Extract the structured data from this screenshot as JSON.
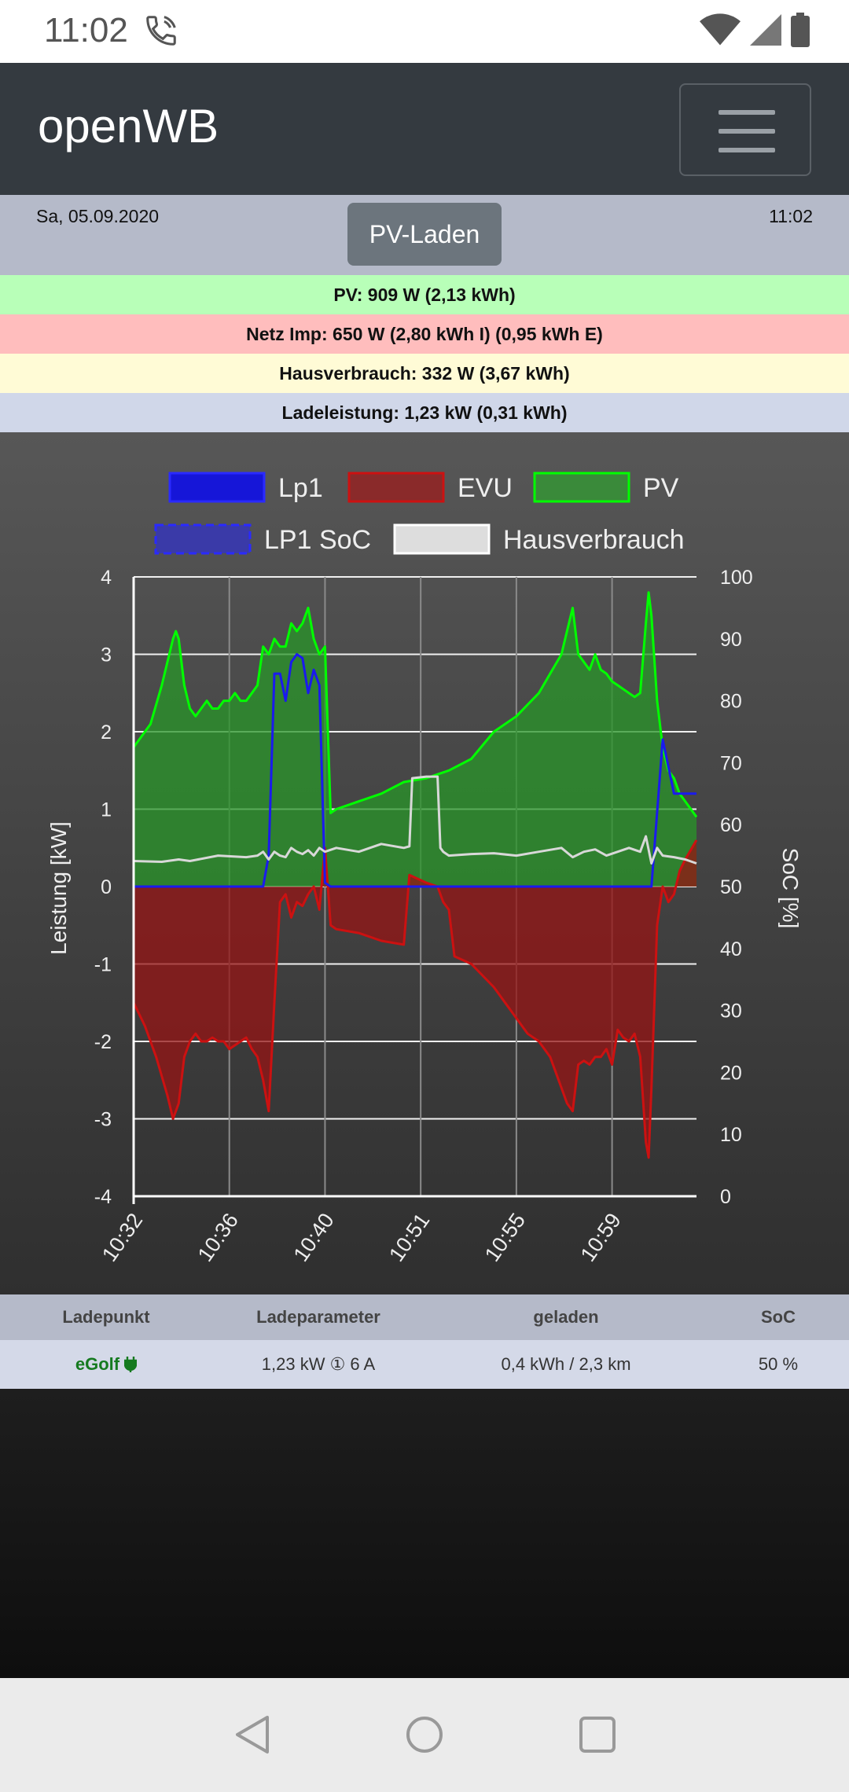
{
  "status_bar": {
    "time": "11:02"
  },
  "navbar": {
    "brand": "openWB"
  },
  "info": {
    "date": "Sa, 05.09.2020",
    "time": "11:02",
    "mode_button": "PV-Laden"
  },
  "stats": {
    "pv": "PV: 909 W (2,13 kWh)",
    "grid": "Netz Imp: 650 W (2,80 kWh I) (0,95 kWh E)",
    "house": "Hausverbrauch: 332 W (3,67 kWh)",
    "charge": "Ladeleistung: 1,23 kW (0,31 kWh)"
  },
  "colors": {
    "pv_bg": "#b8ffb8",
    "grid_bg": "#ffbdbd",
    "house_bg": "#fffbd6",
    "charge_bg": "#d0d7e9",
    "pv": "#00ff00",
    "evu": "#cc1111",
    "lp1": "#1010ee"
  },
  "chart_data": {
    "type": "line",
    "legend": [
      "Lp1",
      "EVU",
      "PV",
      "LP1 SoC",
      "Hausverbrauch"
    ],
    "ylabel": "Leistung [kW]",
    "y2label": "SoC [%]",
    "ylim": [
      -4,
      4
    ],
    "y2lim": [
      0,
      100
    ],
    "yticks": [
      "4",
      "3",
      "2",
      "1",
      "0",
      "-1",
      "-2",
      "-3",
      "-4"
    ],
    "y2ticks": [
      "100",
      "90",
      "80",
      "70",
      "60",
      "50",
      "40",
      "30",
      "20",
      "10",
      "0"
    ],
    "xticks": [
      "10:32",
      "10:36",
      "10:40",
      "10:51",
      "10:55",
      "10:59"
    ],
    "xrange": [
      0,
      100
    ],
    "tick_x": [
      0,
      17,
      34,
      51,
      68,
      85
    ],
    "series": [
      {
        "name": "PV",
        "x": [
          0,
          3,
          5,
          7,
          7.5,
          8,
          9,
          10,
          11,
          12,
          13,
          14,
          15,
          16,
          17,
          18,
          19,
          20,
          21,
          22,
          23,
          24,
          25,
          26,
          27,
          28,
          29,
          30,
          31,
          32,
          33,
          34,
          35,
          36,
          40,
          44,
          48,
          52,
          56,
          60,
          64,
          68,
          70,
          72,
          74,
          76,
          77,
          78,
          79,
          80,
          81,
          82,
          83,
          84,
          85,
          86,
          87,
          88,
          89,
          90,
          91,
          91.5,
          92,
          93,
          94,
          95,
          96,
          97,
          98,
          100
        ],
        "values": [
          1.8,
          2.1,
          2.6,
          3.2,
          3.3,
          3.2,
          2.6,
          2.3,
          2.2,
          2.3,
          2.4,
          2.3,
          2.3,
          2.4,
          2.4,
          2.5,
          2.4,
          2.4,
          2.5,
          2.6,
          3.1,
          3.0,
          3.2,
          3.1,
          3.1,
          3.4,
          3.3,
          3.4,
          3.6,
          3.2,
          3.0,
          3.1,
          0.95,
          1.0,
          1.1,
          1.2,
          1.35,
          1.4,
          1.5,
          1.65,
          2.0,
          2.2,
          2.35,
          2.5,
          2.75,
          3.0,
          3.3,
          3.6,
          3.0,
          2.9,
          2.8,
          3.0,
          2.8,
          2.75,
          2.65,
          2.6,
          2.55,
          2.5,
          2.45,
          2.5,
          3.4,
          3.8,
          3.5,
          2.4,
          1.8,
          1.5,
          1.4,
          1.2,
          1.1,
          0.9
        ]
      },
      {
        "name": "EVU",
        "x": [
          0,
          2,
          4,
          6,
          7,
          8,
          9,
          10,
          11,
          12,
          13,
          14,
          15,
          16,
          17,
          18,
          19,
          20,
          21,
          22,
          23,
          24,
          25,
          26,
          27,
          28,
          29,
          30,
          31,
          32,
          33,
          34,
          35,
          36,
          40,
          44,
          48,
          49,
          52,
          54,
          55,
          56,
          57,
          60,
          64,
          68,
          70,
          72,
          74,
          76,
          77,
          78,
          79,
          80,
          81,
          82,
          83,
          84,
          85,
          86,
          87,
          88,
          89,
          90,
          91,
          91.5,
          92,
          93,
          94,
          95,
          96,
          97,
          98,
          100
        ],
        "values": [
          -1.5,
          -1.8,
          -2.2,
          -2.7,
          -3.0,
          -2.8,
          -2.2,
          -2.0,
          -1.9,
          -2.0,
          -2.0,
          -1.95,
          -2.0,
          -2.0,
          -2.1,
          -2.05,
          -2.0,
          -1.95,
          -2.1,
          -2.2,
          -2.5,
          -2.9,
          -1.5,
          -0.2,
          -0.1,
          -0.4,
          -0.2,
          -0.25,
          -0.1,
          0.0,
          -0.3,
          0.5,
          -0.5,
          -0.55,
          -0.6,
          -0.7,
          -0.75,
          0.15,
          0.05,
          0.0,
          -0.2,
          -0.3,
          -0.9,
          -1.0,
          -1.3,
          -1.7,
          -1.9,
          -2.0,
          -2.2,
          -2.6,
          -2.8,
          -2.9,
          -2.3,
          -2.25,
          -2.3,
          -2.2,
          -2.2,
          -2.1,
          -2.3,
          -1.85,
          -1.95,
          -2.0,
          -1.9,
          -2.2,
          -3.3,
          -3.5,
          -2.6,
          -0.5,
          0.0,
          -0.2,
          -0.1,
          0.2,
          0.35,
          0.6
        ]
      },
      {
        "name": "Lp1",
        "x": [
          0,
          23,
          24,
          25,
          26,
          27,
          28,
          29,
          30,
          31,
          32,
          33,
          34,
          35,
          92,
          94,
          96,
          98,
          100
        ],
        "values": [
          0,
          0,
          0.4,
          2.75,
          2.75,
          2.4,
          2.9,
          3.0,
          2.95,
          2.5,
          2.8,
          2.6,
          0.05,
          0,
          0,
          1.9,
          1.2,
          1.2,
          1.2
        ]
      },
      {
        "name": "Hausverbrauch",
        "x": [
          0,
          5,
          8,
          10,
          15,
          20,
          22,
          23,
          24,
          25,
          26,
          27,
          28,
          29,
          30,
          31,
          32,
          33,
          34,
          36,
          40,
          44,
          48,
          49,
          49.5,
          52,
          54,
          54.5,
          55,
          56,
          60,
          64,
          68,
          72,
          76,
          78,
          80,
          82,
          84,
          86,
          88,
          90,
          91,
          92,
          93,
          94,
          96,
          98,
          100
        ],
        "values": [
          0.33,
          0.32,
          0.35,
          0.33,
          0.4,
          0.38,
          0.4,
          0.45,
          0.35,
          0.45,
          0.4,
          0.38,
          0.5,
          0.45,
          0.42,
          0.47,
          0.4,
          0.5,
          0.45,
          0.5,
          0.45,
          0.55,
          0.5,
          0.52,
          1.4,
          1.42,
          1.42,
          0.5,
          0.45,
          0.4,
          0.42,
          0.43,
          0.4,
          0.45,
          0.5,
          0.38,
          0.45,
          0.48,
          0.4,
          0.45,
          0.5,
          0.45,
          0.65,
          0.3,
          0.5,
          0.4,
          0.38,
          0.35,
          0.3
        ]
      }
    ]
  },
  "table": {
    "headers": [
      "Ladepunkt",
      "Ladeparameter",
      "geladen",
      "SoC"
    ],
    "row": {
      "name": "eGolf",
      "params": "1,23 kW ① 6 A",
      "charged": "0,4 kWh / 2,3 km",
      "soc": "50 %"
    }
  }
}
